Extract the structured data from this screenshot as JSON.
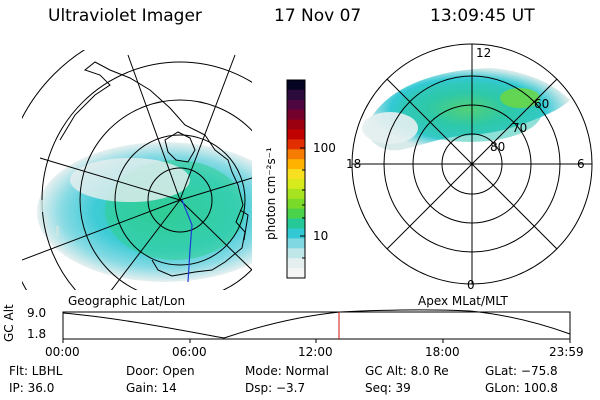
{
  "header": {
    "instrument": "Ultraviolet Imager",
    "date": "17 Nov 07",
    "time": "13:09:45 UT"
  },
  "colorbar": {
    "unit_label": "photon cm⁻²s⁻¹",
    "tick_labels": [
      "100",
      "10"
    ],
    "colors": [
      "#050523",
      "#2a0b3c",
      "#4e0640",
      "#74002c",
      "#9b0011",
      "#c10000",
      "#e22f00",
      "#f57c00",
      "#ffb300",
      "#f7e020",
      "#d6ea1c",
      "#a8e322",
      "#79da2a",
      "#49d24a",
      "#27c898",
      "#33c9d4",
      "#7fd8e2",
      "#bfe6e8",
      "#e6efef",
      "#f5f5f5"
    ]
  },
  "left_map": {
    "label": "Geographic Lat/Lon"
  },
  "right_map": {
    "label": "Apex MLat/MLT",
    "lat_labels": [
      "60",
      "70",
      "80"
    ],
    "mlt_labels": [
      "12",
      "18",
      "6",
      "0"
    ]
  },
  "altitude_plot": {
    "y_label": "GC Alt",
    "y_ticks": [
      "9.0",
      "1.8"
    ],
    "x_ticks": [
      "00:00",
      "06:00",
      "12:00",
      "18:00",
      "23:59"
    ],
    "cursor_time": "13:09:45"
  },
  "footer": {
    "flt": "Flt: LBHL",
    "door": "Door: Open",
    "mode": "Mode: Normal",
    "gc_alt": "GC Alt: 8.0 Re",
    "glat": "GLat: −75.8",
    "ip": "IP: 36.0",
    "gain": "Gain: 14",
    "dsp": "Dsp:    −3.7",
    "seq": "Seq: 39",
    "glon": "GLon: 100.8"
  }
}
